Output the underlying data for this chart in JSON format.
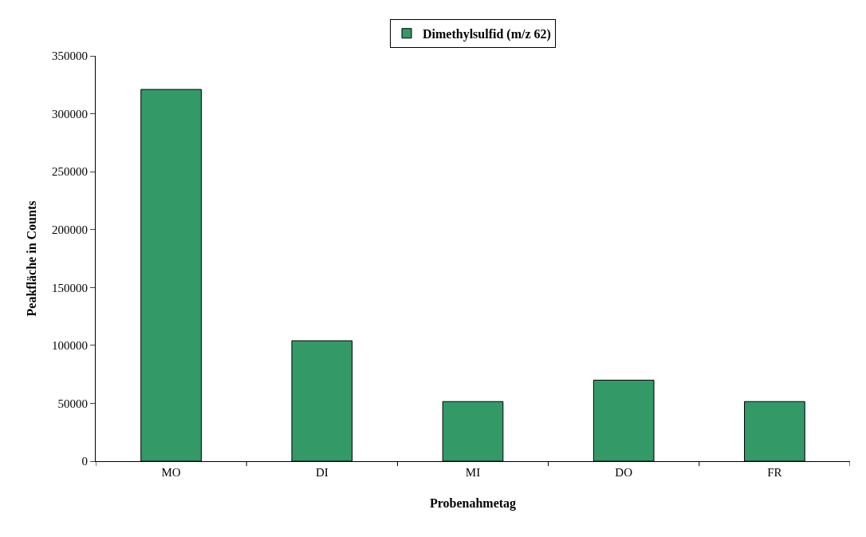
{
  "chart_data": {
    "type": "bar",
    "xlabel": "Probenahmetag",
    "ylabel": "Peakfläche in Counts",
    "categories": [
      "MO",
      "DI",
      "MI",
      "DO",
      "FR"
    ],
    "series": [
      {
        "name": "Dimethylsulfid (m/z 62)",
        "color": "#339966",
        "values": [
          321000,
          104000,
          51500,
          70000,
          51500
        ]
      }
    ],
    "ylim": [
      0,
      350000
    ],
    "yticks": [
      0,
      50000,
      100000,
      150000,
      200000,
      250000,
      300000,
      350000
    ],
    "grid": false,
    "legend": "top"
  }
}
